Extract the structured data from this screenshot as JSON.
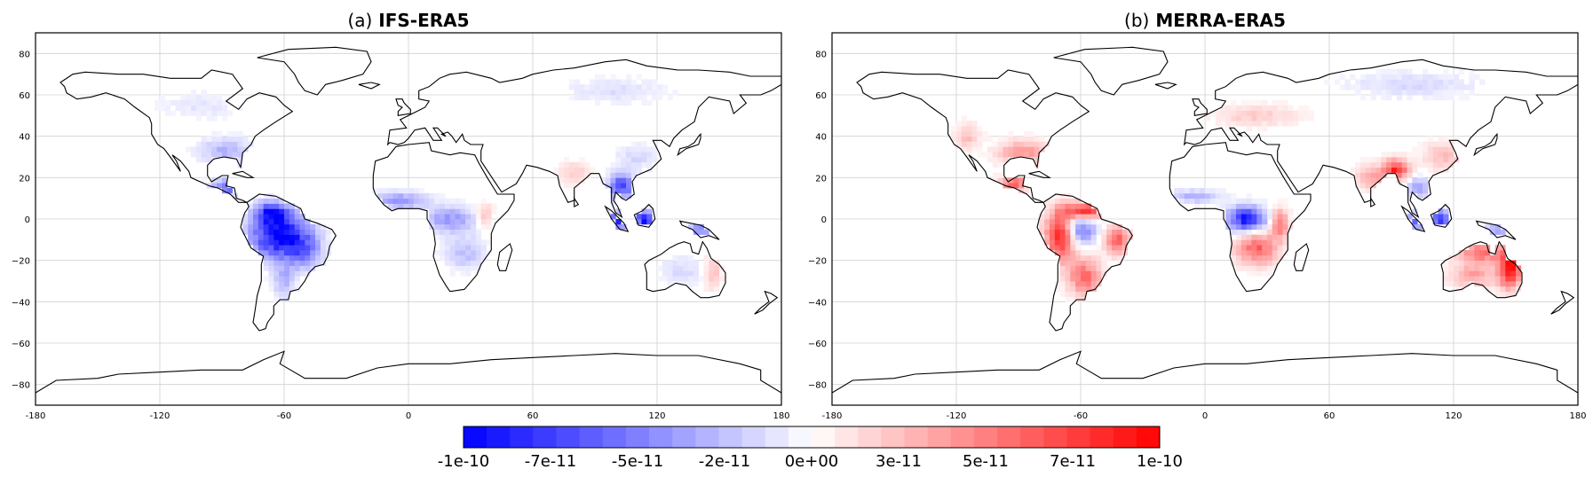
{
  "chart_data": [
    {
      "type": "heatmap",
      "title_prefix": "(a)",
      "title": "IFS-ERA5",
      "x_ticks": [
        "-180",
        "-120",
        "-60",
        "0",
        "60",
        "120",
        "180"
      ],
      "y_ticks": [
        "80",
        "60",
        "40",
        "20",
        "0",
        "−20",
        "−40",
        "−60",
        "−80"
      ],
      "xlim": [
        -180,
        180
      ],
      "ylim": [
        -90,
        90
      ],
      "grid": true,
      "regions": [
        {
          "name": "Amazon",
          "lon": -62,
          "lat": -8,
          "rx": 14,
          "ry": 11,
          "v": -1.0
        },
        {
          "name": "South America north",
          "lon": -66,
          "lat": 3,
          "rx": 8,
          "ry": 5,
          "v": -0.7
        },
        {
          "name": "South America southeast",
          "lon": -50,
          "lat": -16,
          "rx": 8,
          "ry": 8,
          "v": -0.4
        },
        {
          "name": "South America south",
          "lon": -60,
          "lat": -30,
          "rx": 5,
          "ry": 8,
          "v": -0.3
        },
        {
          "name": "Central America",
          "lon": -88,
          "lat": 15,
          "rx": 7,
          "ry": 4,
          "v": -0.6
        },
        {
          "name": "Eastern US",
          "lon": -88,
          "lat": 33,
          "rx": 12,
          "ry": 6,
          "v": -0.3
        },
        {
          "name": "Sahel",
          "lon": -4,
          "lat": 9,
          "rx": 13,
          "ry": 4,
          "v": -0.4
        },
        {
          "name": "Central Africa",
          "lon": 20,
          "lat": 0,
          "rx": 12,
          "ry": 6,
          "v": -0.4
        },
        {
          "name": "Southern Africa",
          "lon": 27,
          "lat": -16,
          "rx": 10,
          "ry": 8,
          "v": -0.25
        },
        {
          "name": "East Africa",
          "lon": 37,
          "lat": 2,
          "rx": 4,
          "ry": 6,
          "v": 0.25
        },
        {
          "name": "Indochina",
          "lon": 103,
          "lat": 16,
          "rx": 6,
          "ry": 6,
          "v": -0.7
        },
        {
          "name": "India",
          "lon": 80,
          "lat": 22,
          "rx": 7,
          "ry": 6,
          "v": 0.2
        },
        {
          "name": "Sumatra",
          "lon": 101,
          "lat": -1,
          "rx": 5,
          "ry": 4,
          "v": -0.8
        },
        {
          "name": "Borneo",
          "lon": 114,
          "lat": 0,
          "rx": 4,
          "ry": 4,
          "v": -1.0
        },
        {
          "name": "New Guinea",
          "lon": 141,
          "lat": -5,
          "rx": 6,
          "ry": 2,
          "v": -0.6
        },
        {
          "name": "Australia east",
          "lon": 147,
          "lat": -25,
          "rx": 4,
          "ry": 9,
          "v": 0.25
        },
        {
          "name": "Australia interior",
          "lon": 132,
          "lat": -25,
          "rx": 10,
          "ry": 7,
          "v": -0.15
        },
        {
          "name": "Siberia",
          "lon": 100,
          "lat": 62,
          "rx": 25,
          "ry": 6,
          "v": -0.12
        },
        {
          "name": "Canada",
          "lon": -100,
          "lat": 55,
          "rx": 18,
          "ry": 6,
          "v": -0.1
        },
        {
          "name": "China",
          "lon": 110,
          "lat": 30,
          "rx": 10,
          "ry": 6,
          "v": -0.15
        }
      ]
    },
    {
      "type": "heatmap",
      "title_prefix": "(b)",
      "title": "MERRA-ERA5",
      "x_ticks": [
        "-180",
        "-120",
        "-60",
        "0",
        "60",
        "120",
        "180"
      ],
      "y_ticks": [
        "80",
        "60",
        "40",
        "20",
        "0",
        "−20",
        "−40",
        "−60",
        "−80"
      ],
      "xlim": [
        -180,
        180
      ],
      "ylim": [
        -90,
        90
      ],
      "grid": true,
      "regions": [
        {
          "name": "South America west",
          "lon": -70,
          "lat": -8,
          "rx": 7,
          "ry": 12,
          "v": 0.85
        },
        {
          "name": "South America north",
          "lon": -58,
          "lat": 4,
          "rx": 10,
          "ry": 4,
          "v": 0.8
        },
        {
          "name": "Amazon central",
          "lon": -60,
          "lat": -5,
          "rx": 7,
          "ry": 7,
          "v": -0.55
        },
        {
          "name": "Brazil east",
          "lon": -42,
          "lat": -10,
          "rx": 6,
          "ry": 7,
          "v": 0.6
        },
        {
          "name": "South America south",
          "lon": -58,
          "lat": -28,
          "rx": 8,
          "ry": 9,
          "v": 0.55
        },
        {
          "name": "Central America",
          "lon": -92,
          "lat": 17,
          "rx": 7,
          "ry": 4,
          "v": 0.6
        },
        {
          "name": "Eastern US",
          "lon": -88,
          "lat": 32,
          "rx": 12,
          "ry": 6,
          "v": 0.4
        },
        {
          "name": "Western US",
          "lon": -115,
          "lat": 40,
          "rx": 6,
          "ry": 6,
          "v": 0.25
        },
        {
          "name": "Sahel",
          "lon": -5,
          "lat": 11,
          "rx": 12,
          "ry": 3,
          "v": -0.3
        },
        {
          "name": "Congo basin",
          "lon": 20,
          "lat": 0,
          "rx": 9,
          "ry": 6,
          "v": -0.9
        },
        {
          "name": "Southern Africa",
          "lon": 25,
          "lat": -14,
          "rx": 10,
          "ry": 8,
          "v": 0.6
        },
        {
          "name": "East Africa",
          "lon": 36,
          "lat": -2,
          "rx": 4,
          "ry": 7,
          "v": 0.55
        },
        {
          "name": "India Burma",
          "lon": 92,
          "lat": 24,
          "rx": 6,
          "ry": 5,
          "v": 0.8
        },
        {
          "name": "India",
          "lon": 80,
          "lat": 20,
          "rx": 7,
          "ry": 6,
          "v": 0.35
        },
        {
          "name": "Indochina",
          "lon": 103,
          "lat": 15,
          "rx": 5,
          "ry": 5,
          "v": -0.4
        },
        {
          "name": "Sumatra",
          "lon": 101,
          "lat": -1,
          "rx": 5,
          "ry": 4,
          "v": -0.6
        },
        {
          "name": "Borneo",
          "lon": 114,
          "lat": 0,
          "rx": 4,
          "ry": 4,
          "v": -0.9
        },
        {
          "name": "New Guinea",
          "lon": 141,
          "lat": -5,
          "rx": 6,
          "ry": 2,
          "v": -0.5
        },
        {
          "name": "Australia north",
          "lon": 134,
          "lat": -16,
          "rx": 12,
          "ry": 5,
          "v": 0.55
        },
        {
          "name": "Australia east",
          "lon": 147,
          "lat": -24,
          "rx": 5,
          "ry": 9,
          "v": 0.95
        },
        {
          "name": "Australia interior",
          "lon": 130,
          "lat": -27,
          "rx": 12,
          "ry": 6,
          "v": 0.35
        },
        {
          "name": "Europe",
          "lon": 25,
          "lat": 50,
          "rx": 20,
          "ry": 5,
          "v": 0.2
        },
        {
          "name": "Siberia",
          "lon": 100,
          "lat": 65,
          "rx": 30,
          "ry": 6,
          "v": -0.15
        },
        {
          "name": "China",
          "lon": 115,
          "lat": 30,
          "rx": 10,
          "ry": 7,
          "v": 0.25
        }
      ]
    }
  ],
  "colorbar": {
    "tick_labels": [
      "-1e-10",
      "-7e-11",
      "-5e-11",
      "-2e-11",
      "0e+00",
      "3e-11",
      "5e-11",
      "7e-11",
      "1e-10"
    ],
    "min": -1e-10,
    "max": 1e-10,
    "levels": 30,
    "negative_color": "#0000ff",
    "positive_color": "#ff0000",
    "mid_color": "#ffffff"
  },
  "colors": {
    "coastline": "#000000",
    "grid": "#d0d0d0",
    "land": "#ffffff"
  }
}
